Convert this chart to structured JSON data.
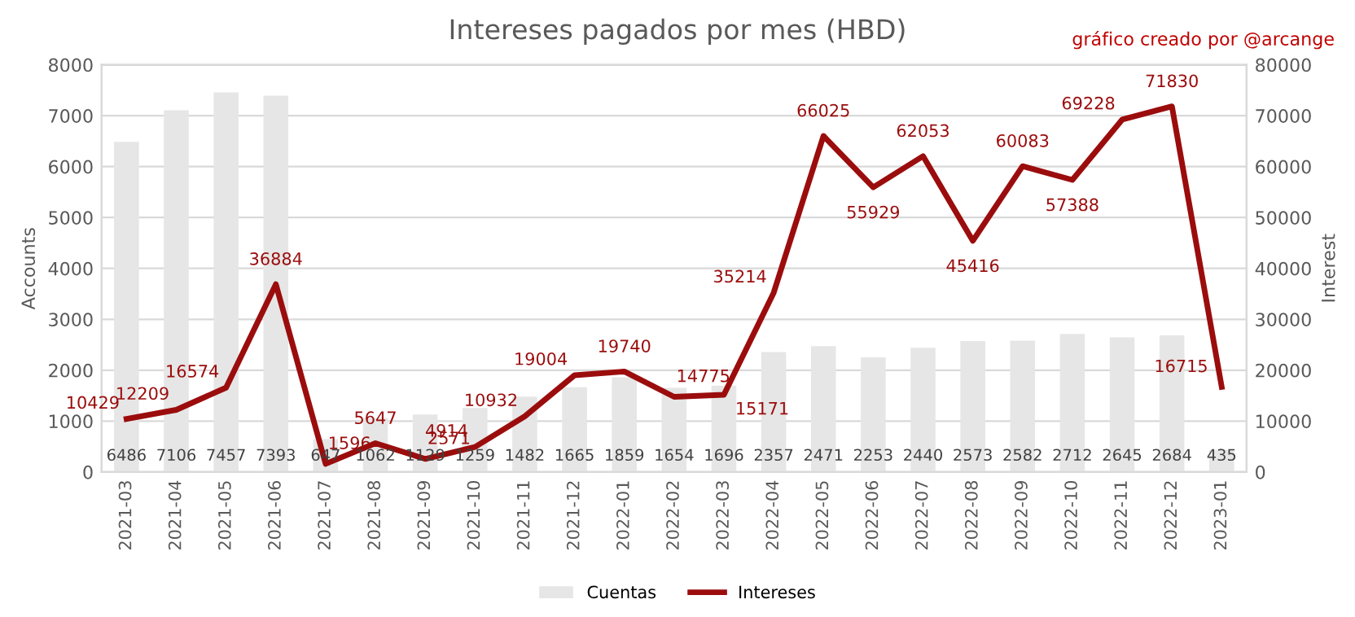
{
  "chart_data": {
    "type": "bar",
    "title": "Intereses pagados por mes (HBD)",
    "ylabel": "Accounts",
    "y2label": "Interest",
    "annotations": [
      "gráfico creado por @arcange"
    ],
    "categories": [
      "2021-03",
      "2021-04",
      "2021-05",
      "2021-06",
      "2021-07",
      "2021-08",
      "2021-09",
      "2021-10",
      "2021-11",
      "2021-12",
      "2022-01",
      "2022-02",
      "2022-03",
      "2022-04",
      "2022-05",
      "2022-06",
      "2022-07",
      "2022-08",
      "2022-09",
      "2022-10",
      "2022-11",
      "2022-12",
      "2023-01"
    ],
    "series": [
      {
        "name": "Cuentas",
        "color": "#e6e6e6",
        "values": [
          6486,
          7106,
          7457,
          7393,
          647,
          1062,
          1129,
          1259,
          1482,
          1665,
          1859,
          1654,
          1696,
          2357,
          2471,
          2253,
          2440,
          2573,
          2582,
          2712,
          2645,
          2684,
          435
        ]
      },
      {
        "name": "Intereses",
        "type": "line",
        "axis": "y2",
        "color": "#9b0d0d",
        "values": [
          10429,
          12209,
          16574,
          36884,
          1596,
          5647,
          2571,
          4914,
          10932,
          19004,
          19740,
          14775,
          15171,
          35214,
          66025,
          55929,
          62053,
          45416,
          60083,
          57388,
          69228,
          71830,
          16715
        ]
      }
    ],
    "ylim": [
      0,
      8000
    ],
    "yticks": [
      0,
      1000,
      2000,
      3000,
      4000,
      5000,
      6000,
      7000,
      8000
    ],
    "y2lim": [
      0,
      80000
    ],
    "y2ticks": [
      0,
      10000,
      20000,
      30000,
      40000,
      50000,
      60000,
      70000,
      80000
    ],
    "grid": "y",
    "legend": "bottom",
    "data_labels": true,
    "marker": "none",
    "line_style": "solid"
  }
}
